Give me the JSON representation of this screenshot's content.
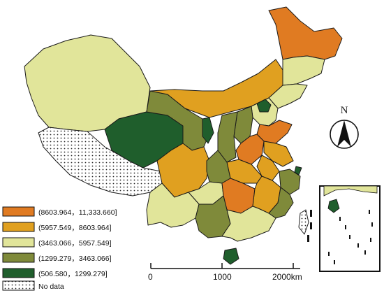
{
  "colors": {
    "c1": "#e07b22",
    "c2": "#e0a020",
    "c3": "#e1e59a",
    "c4": "#7f8a3a",
    "c5": "#1f5e2c",
    "nodata": "#ffffff"
  },
  "legend": [
    {
      "label": "(8603.964，11,333.660]",
      "color": "#e07b22"
    },
    {
      "label": "(5957.549，8603.964]",
      "color": "#e0a020"
    },
    {
      "label": "(3463.066，5957.549]",
      "color": "#e1e59a"
    },
    {
      "label": "(1299.279，3463.066]",
      "color": "#7f8a3a"
    },
    {
      "label": "(506.580，1299.279]",
      "color": "#1f5e2c"
    },
    {
      "label": "No data",
      "color": "nodata"
    }
  ],
  "north": {
    "label": "N"
  },
  "scale": {
    "ticks": [
      "0",
      "1000",
      "2000km"
    ]
  }
}
